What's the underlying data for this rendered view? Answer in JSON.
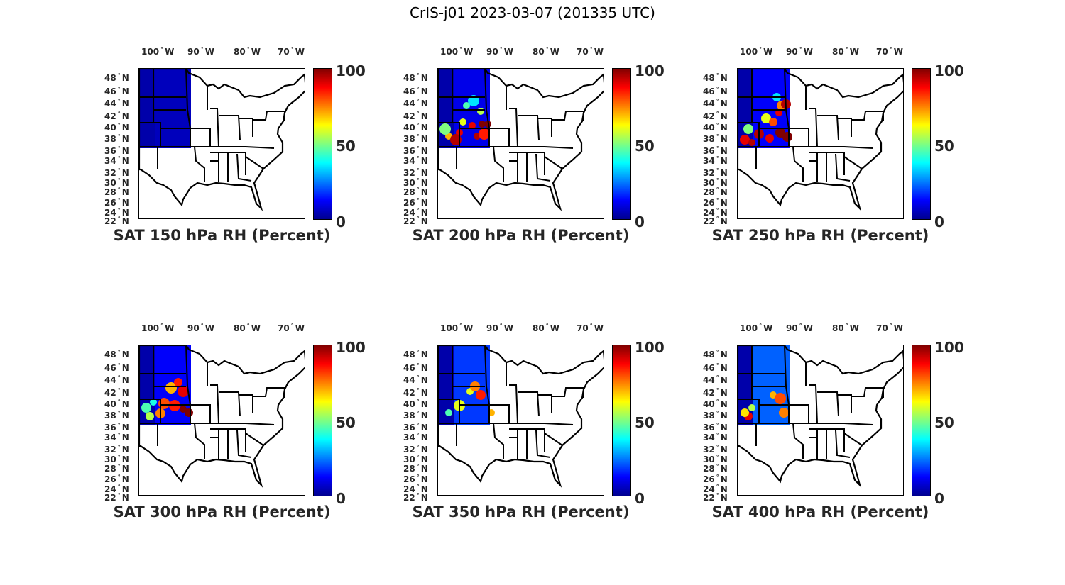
{
  "figure_title": "CrIS-j01 2023-03-07 (201335 UTC)",
  "lon_ticks": [
    "100",
    "90",
    "80",
    "70"
  ],
  "lon_suffix": "W",
  "lat_ticks": [
    "48",
    "46",
    "44",
    "42",
    "40",
    "38",
    "36",
    "34",
    "32",
    "30",
    "28",
    "26",
    "24",
    "22"
  ],
  "lat_suffix": "N",
  "colorbar": {
    "ticks": [
      "100",
      "50",
      "0"
    ],
    "min": 0,
    "max": 100,
    "colormap": "jet"
  },
  "panels": [
    {
      "title": "SAT 150 hPa RH (Percent)",
      "level_hpa": 150
    },
    {
      "title": "SAT 200 hPa RH (Percent)",
      "level_hpa": 200
    },
    {
      "title": "SAT 250 hPa RH (Percent)",
      "level_hpa": 250
    },
    {
      "title": "SAT 300 hPa RH (Percent)",
      "level_hpa": 300
    },
    {
      "title": "SAT 350 hPa RH (Percent)",
      "level_hpa": 350
    },
    {
      "title": "SAT 400 hPa RH (Percent)",
      "level_hpa": 400
    }
  ]
}
